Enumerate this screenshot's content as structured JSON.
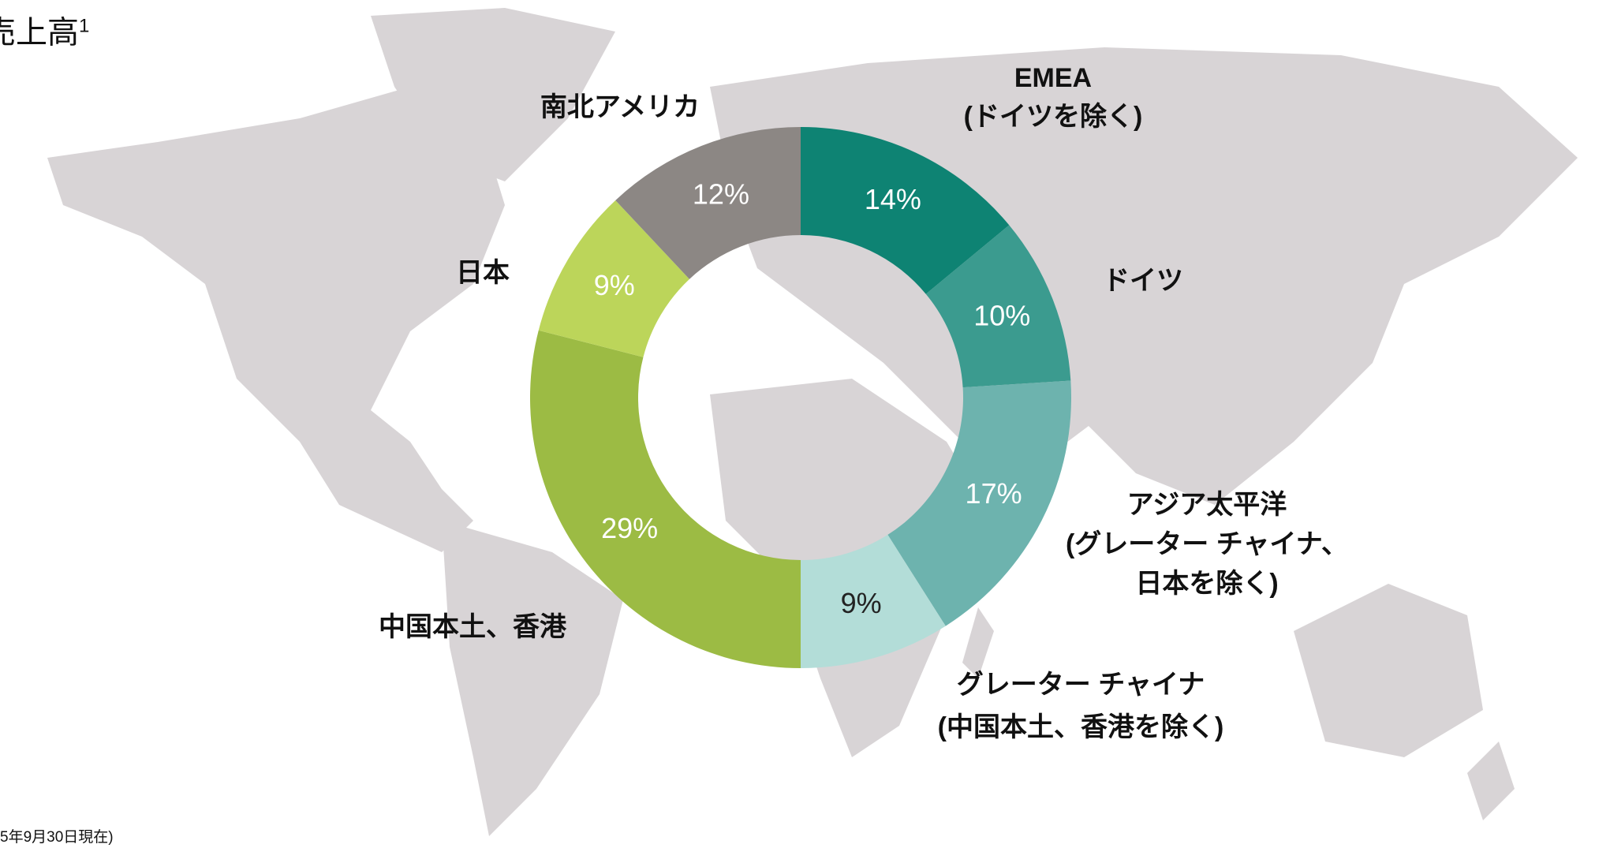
{
  "chart_data": {
    "type": "pie",
    "title": "売上高",
    "title_superscript": "1",
    "categories": [
      "EMEA\n(ドイツを除く)",
      "ドイツ",
      "アジア太平洋\n(グレーター チャイナ、\n日本を除く)",
      "グレーター チャイナ\n(中国本土、香港を除く)",
      "中国本土、香港",
      "日本",
      "南北アメリカ"
    ],
    "values": [
      14,
      10,
      17,
      9,
      29,
      9,
      12
    ],
    "value_labels": [
      "14%",
      "10%",
      "17%",
      "9%",
      "29%",
      "9%",
      "12%"
    ],
    "colors": [
      "#0e8373",
      "#3b9b8f",
      "#6db3ae",
      "#b3ddd8",
      "#9cbb44",
      "#bcd55a",
      "#8c8784"
    ],
    "footnote": "5年9月30日現在)"
  }
}
